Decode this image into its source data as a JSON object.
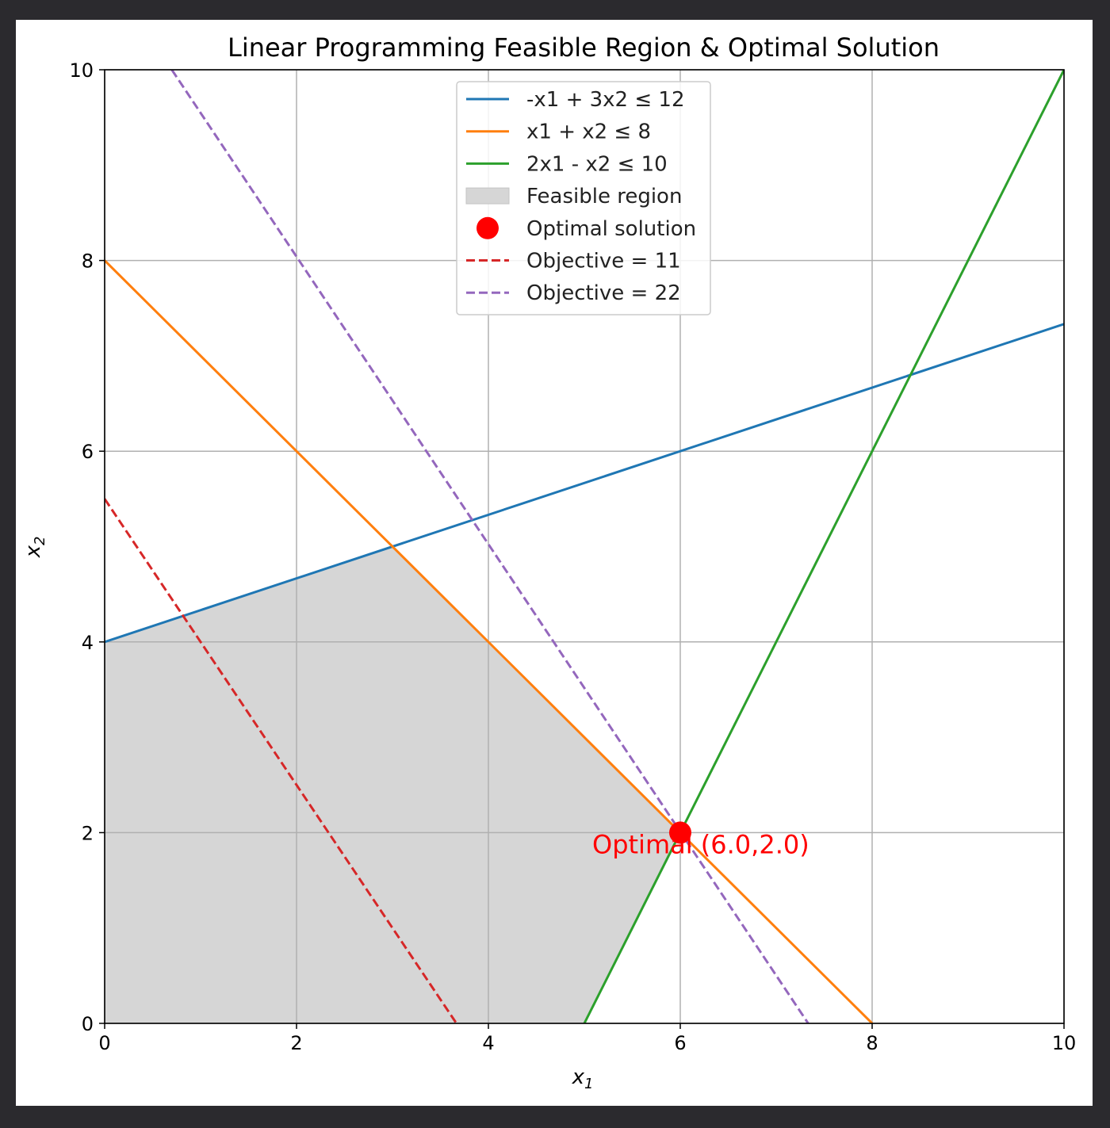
{
  "chart_data": {
    "type": "line",
    "title": "Linear Programming Feasible Region & Optimal Solution",
    "xlabel": "x1",
    "ylabel": "x2",
    "xlim": [
      0,
      10
    ],
    "ylim": [
      0,
      10
    ],
    "xticks": [
      0,
      2,
      4,
      6,
      8,
      10
    ],
    "yticks": [
      0,
      2,
      4,
      6,
      8,
      10
    ],
    "grid": true,
    "legend_position": "top-center",
    "constraints": [
      {
        "name": "-x1 + 3x2 ≤ 12",
        "color": "#1f77b4",
        "style": "solid",
        "points": [
          [
            0,
            4
          ],
          [
            10,
            7.3333
          ]
        ]
      },
      {
        "name": "x1 + x2 ≤ 8",
        "color": "#ff7f0e",
        "style": "solid",
        "points": [
          [
            0,
            8
          ],
          [
            8,
            0
          ]
        ]
      },
      {
        "name": "2x1 - x2 ≤ 10",
        "color": "#2ca02c",
        "style": "solid",
        "points": [
          [
            5,
            0
          ],
          [
            10,
            10
          ]
        ]
      }
    ],
    "feasible_region": {
      "name": "Feasible region",
      "color": "#d6d6d6",
      "polygon": [
        [
          0,
          0
        ],
        [
          5,
          0
        ],
        [
          6,
          2
        ],
        [
          3,
          5
        ],
        [
          0,
          4
        ]
      ]
    },
    "optimal": {
      "name": "Optimal solution",
      "color": "#ff0000",
      "x": 6.0,
      "y": 2.0,
      "annotation": "Optimal (6.0,2.0)"
    },
    "objective_lines": [
      {
        "name": "Objective = 11",
        "color": "#d62728",
        "style": "dashed",
        "points": [
          [
            0,
            5.5
          ],
          [
            3.667,
            0
          ]
        ]
      },
      {
        "name": "Objective = 22",
        "color": "#9467bd",
        "style": "dashed",
        "points": [
          [
            0.7,
            10
          ],
          [
            7.333,
            0
          ]
        ]
      }
    ],
    "legend_order": [
      "-x1 + 3x2 ≤ 12",
      "x1 + x2 ≤ 8",
      "2x1 - x2 ≤ 10",
      "Feasible region",
      "Optimal solution",
      "Objective = 11",
      "Objective = 22"
    ]
  }
}
